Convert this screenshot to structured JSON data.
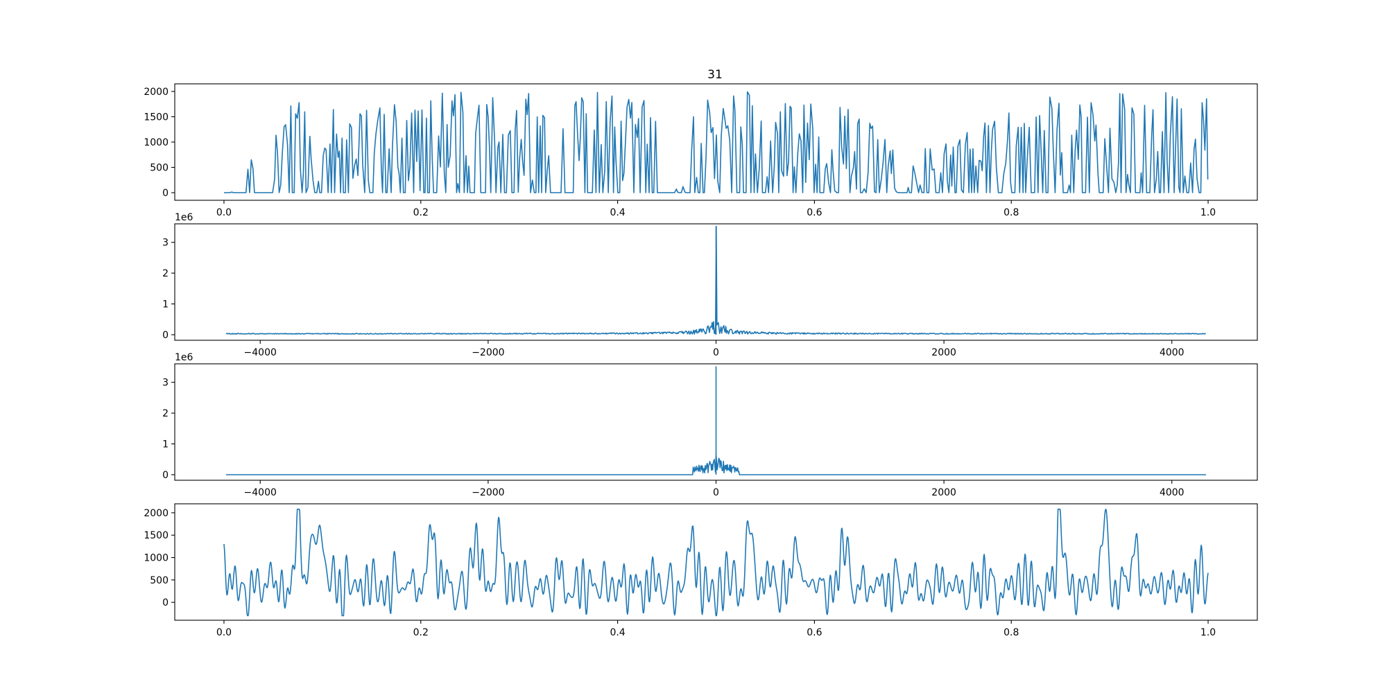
{
  "title": "31",
  "colors": {
    "series": "#1f77b4",
    "axis": "#000000",
    "background": "#ffffff"
  },
  "chart_data": [
    {
      "type": "line",
      "panel": "time-signal",
      "title": "31",
      "xlim": [
        -0.05,
        1.05
      ],
      "ylim": [
        -150,
        2150
      ],
      "xticks": [
        0.0,
        0.2,
        0.4,
        0.6,
        0.8,
        1.0
      ],
      "xtick_labels": [
        "0.0",
        "0.2",
        "0.4",
        "0.6",
        "0.8",
        "1.0"
      ],
      "yticks": [
        0,
        500,
        1000,
        1500,
        2000
      ],
      "ytick_labels": [
        "0",
        "500",
        "1000",
        "1500",
        "2000"
      ],
      "offset_label": "",
      "x_range": [
        0.0,
        1.0
      ],
      "y_range": [
        0,
        2050
      ],
      "description": "square-wave-like bursts between 0 and ~2000",
      "segments": [
        {
          "x": 0.0,
          "level": 0
        },
        {
          "x": 0.02,
          "level": 300
        },
        {
          "x": 0.03,
          "level": 1250
        },
        {
          "x": 0.065,
          "level": 1750
        },
        {
          "x": 0.09,
          "level": 2050
        },
        {
          "x": 0.1,
          "level": 2000
        },
        {
          "x": 0.13,
          "level": 1550
        },
        {
          "x": 0.21,
          "level": 2000
        },
        {
          "x": 0.26,
          "level": 2000
        },
        {
          "x": 0.28,
          "level": 2000
        },
        {
          "x": 0.32,
          "level": 2000
        },
        {
          "x": 0.47,
          "level": 2000
        },
        {
          "x": 0.535,
          "level": 2000
        },
        {
          "x": 0.58,
          "level": 1850
        },
        {
          "x": 0.62,
          "level": 1850
        },
        {
          "x": 0.7,
          "level": 1000
        },
        {
          "x": 0.75,
          "level": 1200
        },
        {
          "x": 0.85,
          "level": 2000
        },
        {
          "x": 0.9,
          "level": 2050
        },
        {
          "x": 0.97,
          "level": 2000
        },
        {
          "x": 1.0,
          "level": 2000
        }
      ]
    },
    {
      "type": "line",
      "panel": "fft-spectrum",
      "xlim": [
        -4750,
        4750
      ],
      "ylim": [
        -0.18,
        3.6
      ],
      "xticks": [
        -4000,
        -2000,
        0,
        2000,
        4000
      ],
      "xtick_labels": [
        "−4000",
        "−2000",
        "0",
        "2000",
        "4000"
      ],
      "yticks": [
        0,
        1,
        2,
        3
      ],
      "ytick_labels": [
        "0",
        "1",
        "2",
        "3"
      ],
      "offset_label": "1e6",
      "x_range": [
        -4300,
        4300
      ],
      "peak": {
        "x": 0,
        "y": 3.52
      },
      "near_peak_max": 0.7,
      "noise_floor": 0.04
    },
    {
      "type": "line",
      "panel": "filtered-spectrum",
      "xlim": [
        -4750,
        4750
      ],
      "ylim": [
        -0.18,
        3.6
      ],
      "xticks": [
        -4000,
        -2000,
        0,
        2000,
        4000
      ],
      "xtick_labels": [
        "−4000",
        "−2000",
        "0",
        "2000",
        "4000"
      ],
      "yticks": [
        0,
        1,
        2,
        3
      ],
      "ytick_labels": [
        "0",
        "1",
        "2",
        "3"
      ],
      "offset_label": "1e6",
      "x_range": [
        -4300,
        4300
      ],
      "peak": {
        "x": 0,
        "y": 3.52
      },
      "passband": [
        -200,
        200
      ],
      "near_peak_max": 0.8
    },
    {
      "type": "line",
      "panel": "reconstructed-signal",
      "xlim": [
        -0.05,
        1.05
      ],
      "ylim": [
        -400,
        2200
      ],
      "xticks": [
        0.0,
        0.2,
        0.4,
        0.6,
        0.8,
        1.0
      ],
      "xtick_labels": [
        "0.0",
        "0.2",
        "0.4",
        "0.6",
        "0.8",
        "1.0"
      ],
      "yticks": [
        0,
        500,
        1000,
        1500,
        2000
      ],
      "ytick_labels": [
        "0",
        "500",
        "1000",
        "1500",
        "2000"
      ],
      "offset_label": "",
      "x_range": [
        0.0,
        1.0
      ],
      "y_range": [
        -300,
        2080
      ],
      "peaks": [
        {
          "x": 0.0,
          "y": 650
        },
        {
          "x": 0.075,
          "y": 1880
        },
        {
          "x": 0.09,
          "y": 1700
        },
        {
          "x": 0.1,
          "y": 1800
        },
        {
          "x": 0.21,
          "y": 1960
        },
        {
          "x": 0.255,
          "y": 1620
        },
        {
          "x": 0.28,
          "y": 1880
        },
        {
          "x": 0.475,
          "y": 1550
        },
        {
          "x": 0.535,
          "y": 2080
        },
        {
          "x": 0.58,
          "y": 1570
        },
        {
          "x": 0.63,
          "y": 1500
        },
        {
          "x": 0.85,
          "y": 1850
        },
        {
          "x": 0.895,
          "y": 1870
        },
        {
          "x": 0.925,
          "y": 1400
        },
        {
          "x": 1.0,
          "y": 920
        }
      ]
    }
  ]
}
